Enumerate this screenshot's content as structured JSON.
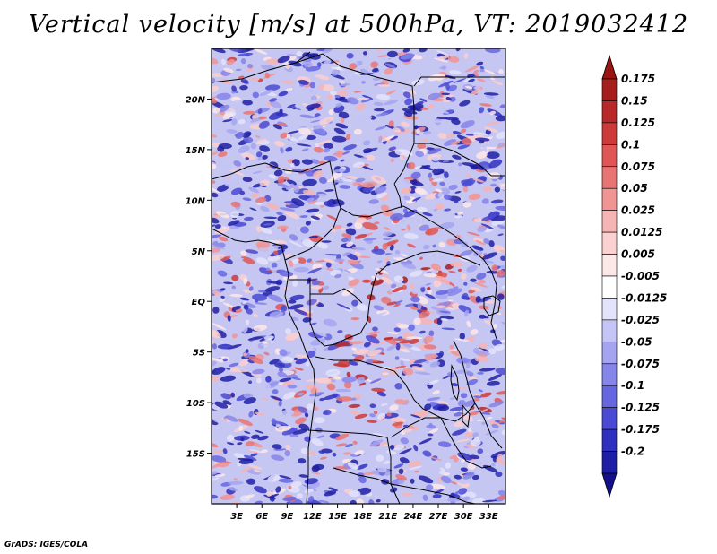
{
  "title": "Vertical velocity [m/s] at 500hPa, VT: 2019032412",
  "footer": "GrADS: IGES/COLA",
  "map": {
    "variable": "Vertical velocity",
    "units": "m/s",
    "level": "500hPa",
    "valid_time": "2019032412",
    "lon_range": [
      0,
      35
    ],
    "lat_range": [
      -20,
      25
    ],
    "lat_ticks": [
      {
        "value": 20,
        "label": "20N"
      },
      {
        "value": 15,
        "label": "15N"
      },
      {
        "value": 10,
        "label": "10N"
      },
      {
        "value": 5,
        "label": "5N"
      },
      {
        "value": 0,
        "label": "EQ"
      },
      {
        "value": -5,
        "label": "5S"
      },
      {
        "value": -10,
        "label": "10S"
      },
      {
        "value": -15,
        "label": "15S"
      }
    ],
    "lon_ticks": [
      {
        "value": 3,
        "label": "3E"
      },
      {
        "value": 6,
        "label": "6E"
      },
      {
        "value": 9,
        "label": "9E"
      },
      {
        "value": 12,
        "label": "12E"
      },
      {
        "value": 15,
        "label": "15E"
      },
      {
        "value": 18,
        "label": "18E"
      },
      {
        "value": 21,
        "label": "21E"
      },
      {
        "value": 24,
        "label": "24E"
      },
      {
        "value": 27,
        "label": "27E"
      },
      {
        "value": 30,
        "label": "30E"
      },
      {
        "value": 33,
        "label": "33E"
      }
    ]
  },
  "colorbar": {
    "levels": [
      {
        "label": "0.175",
        "color": "#a51d1d"
      },
      {
        "label": "0.15",
        "color": "#b82828"
      },
      {
        "label": "0.125",
        "color": "#cc3a3a"
      },
      {
        "label": "0.1",
        "color": "#de5656"
      },
      {
        "label": "0.075",
        "color": "#e87474"
      },
      {
        "label": "0.05",
        "color": "#f09494"
      },
      {
        "label": "0.025",
        "color": "#f6b4b4"
      },
      {
        "label": "0.0125",
        "color": "#fad0d0"
      },
      {
        "label": "0.005",
        "color": "#fde8e8"
      },
      {
        "label": "-0.005",
        "color": "#ffffff"
      },
      {
        "label": "-0.0125",
        "color": "#e3e3fb"
      },
      {
        "label": "-0.025",
        "color": "#c4c4f6"
      },
      {
        "label": "-0.05",
        "color": "#a4a4f0"
      },
      {
        "label": "-0.075",
        "color": "#8585ea"
      },
      {
        "label": "-0.1",
        "color": "#6666e0"
      },
      {
        "label": "-0.125",
        "color": "#4a4ad4"
      },
      {
        "label": "-0.175",
        "color": "#3030c0"
      },
      {
        "label": "-0.2",
        "color": "#1f1fa5"
      }
    ],
    "top_color": "#9b1414",
    "bottom_color": "#140f8a"
  }
}
